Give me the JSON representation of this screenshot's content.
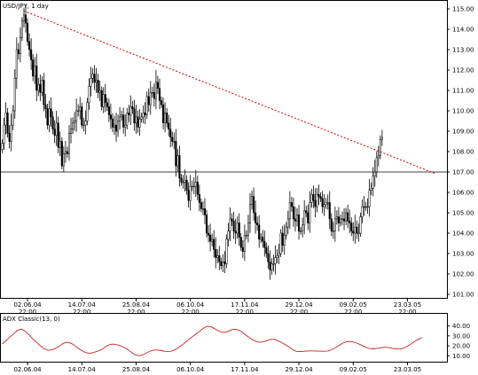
{
  "chart_data": [
    {
      "type": "candlestick",
      "title": "USD/JPY, 1 day",
      "ylim": [
        101.0,
        115.0
      ],
      "yticks": [
        101.0,
        102.0,
        103.0,
        104.0,
        105.0,
        106.0,
        107.0,
        108.0,
        109.0,
        110.0,
        111.0,
        112.0,
        113.0,
        114.0,
        115.0
      ],
      "x_labels": [
        {
          "date": "02.06.04",
          "time": "22:00",
          "index": 14
        },
        {
          "date": "14.07.04",
          "time": "22:00",
          "index": 44
        },
        {
          "date": "25.08.04",
          "time": "22:00",
          "index": 74
        },
        {
          "date": "06.10.04",
          "time": "22:00",
          "index": 104
        },
        {
          "date": "17.11.04",
          "time": "22:00",
          "index": 134
        },
        {
          "date": "29.12.04",
          "time": "22:00",
          "index": 164
        },
        {
          "date": "09.02.05",
          "time": "22:00",
          "index": 194
        },
        {
          "date": "23.03.05",
          "time": "22:00",
          "index": 224
        }
      ],
      "close": [
        108.4,
        109.3,
        109.9,
        108.9,
        108.5,
        109.3,
        110.0,
        111.6,
        113.0,
        112.8,
        113.6,
        114.4,
        114.7,
        114.3,
        113.4,
        113.0,
        112.5,
        111.7,
        112.2,
        111.0,
        111.3,
        110.9,
        111.5,
        110.3,
        110.1,
        109.3,
        110.1,
        109.7,
        109.1,
        108.8,
        109.4,
        108.2,
        108.5,
        107.3,
        107.9,
        108.0,
        107.9,
        108.9,
        109.1,
        109.4,
        109.5,
        110.0,
        110.0,
        110.2,
        109.3,
        109.3,
        109.5,
        110.4,
        111.2,
        111.6,
        111.8,
        111.4,
        111.5,
        110.9,
        111.0,
        110.2,
        110.8,
        110.4,
        110.2,
        109.8,
        109.6,
        109.2,
        109.3,
        109.0,
        109.5,
        109.7,
        109.8,
        109.2,
        109.3,
        109.9,
        109.8,
        110.2,
        110.1,
        109.4,
        109.7,
        109.2,
        109.6,
        109.7,
        109.9,
        109.8,
        110.7,
        110.3,
        110.9,
        110.9,
        110.6,
        111.4,
        111.1,
        110.5,
        110.3,
        109.4,
        109.9,
        109.4,
        109.1,
        108.7,
        108.5,
        108.5,
        107.3,
        107.8,
        106.7,
        106.5,
        106.5,
        106.6,
        106.1,
        105.6,
        106.3,
        106.3,
        106.3,
        106.5,
        105.9,
        105.5,
        105.2,
        105.2,
        104.9,
        104.0,
        103.9,
        103.6,
        103.7,
        103.2,
        102.8,
        102.9,
        102.6,
        102.4,
        102.6,
        102.5,
        103.7,
        104.1,
        104.7,
        104.6,
        104.1,
        104.0,
        104.5,
        103.8,
        103.3,
        103.1,
        103.9,
        103.9,
        104.5,
        105.4,
        105.8,
        105.0,
        104.5,
        104.4,
        103.7,
        103.8,
        103.6,
        103.3,
        103.0,
        102.6,
        102.2,
        102.5,
        102.5,
        102.8,
        102.9,
        103.0,
        104.0,
        103.4,
        103.9,
        104.3,
        104.7,
        105.5,
        105.3,
        104.7,
        104.6,
        104.9,
        104.1,
        104.1,
        104.4,
        105.1,
        105.0,
        104.5,
        105.5,
        105.9,
        105.6,
        105.3,
        105.9,
        105.8,
        105.7,
        105.3,
        105.4,
        105.5,
        105.5,
        104.7,
        104.1,
        104.1,
        104.7,
        104.8,
        104.5,
        104.7,
        104.7,
        104.6,
        105.0,
        104.6,
        104.5,
        104.1,
        104.0,
        104.3,
        104.0,
        104.0,
        104.8,
        105.3,
        105.3,
        105.3,
        105.3,
        106.1,
        106.2,
        106.8,
        107.0,
        107.7,
        107.8,
        108.6,
        108.7
      ],
      "levels": [
        107.0
      ],
      "trendline": {
        "from": {
          "index": 12,
          "value": 114.9
        },
        "to": {
          "index": 240,
          "value": 106.9
        }
      },
      "colors": {
        "candle": "#000000",
        "trendline": "#cc0000",
        "level": "#000000"
      }
    },
    {
      "type": "line",
      "title": "ADX Classic(13, 0)",
      "ylim": [
        5,
        45
      ],
      "yticks": [
        10.0,
        20.0,
        30.0,
        40.0
      ],
      "x_labels": [
        {
          "date": "02.06.04",
          "index": 14
        },
        {
          "date": "14.07.04",
          "index": 44
        },
        {
          "date": "25.08.04",
          "index": 74
        },
        {
          "date": "06.10.04",
          "index": 104
        },
        {
          "date": "17.11.04",
          "index": 134
        },
        {
          "date": "29.12.04",
          "index": 164
        },
        {
          "date": "09.02.05",
          "index": 194
        },
        {
          "date": "23.03.05",
          "index": 224
        }
      ],
      "values": [
        21.9,
        23.7,
        25.0,
        26.7,
        28.6,
        30.1,
        31.5,
        33.2,
        35.0,
        35.9,
        36.7,
        36.5,
        35.6,
        34.1,
        32.6,
        30.7,
        28.7,
        26.8,
        25.1,
        23.5,
        21.7,
        20.2,
        18.8,
        17.4,
        16.5,
        15.8,
        15.6,
        15.9,
        16.3,
        17.2,
        18.1,
        19.1,
        20.4,
        21.6,
        22.6,
        23.3,
        23.5,
        23.3,
        22.6,
        21.6,
        20.3,
        19.0,
        17.7,
        16.5,
        15.2,
        14.3,
        13.4,
        12.8,
        12.4,
        12.7,
        13.2,
        13.6,
        14.2,
        14.8,
        15.5,
        16.4,
        17.5,
        19.0,
        20.2,
        21.0,
        21.5,
        21.7,
        21.6,
        21.3,
        20.8,
        20.3,
        19.6,
        18.7,
        17.8,
        16.7,
        15.4,
        14.1,
        12.8,
        11.5,
        10.7,
        10.4,
        10.3,
        10.6,
        11.2,
        12.1,
        13.1,
        14.0,
        14.9,
        15.4,
        15.8,
        15.9,
        15.8,
        15.5,
        15.2,
        14.8,
        14.6,
        14.4,
        14.4,
        14.6,
        15.0,
        15.7,
        16.7,
        17.8,
        19.1,
        20.4,
        21.7,
        23.1,
        24.6,
        26.2,
        27.7,
        29.0,
        30.4,
        31.8,
        33.1,
        34.5,
        36.0,
        37.4,
        38.6,
        39.4,
        39.6,
        39.3,
        38.6,
        37.6,
        36.6,
        35.6,
        34.7,
        33.9,
        33.5,
        33.6,
        34.0,
        34.7,
        35.5,
        36.2,
        36.6,
        36.7,
        36.2,
        35.4,
        34.4,
        33.1,
        31.6,
        30.3,
        29.0,
        27.7,
        26.5,
        25.5,
        24.7,
        24.1,
        23.8,
        23.8,
        24.0,
        24.4,
        24.9,
        25.6,
        26.3,
        26.6,
        26.6,
        26.2,
        25.4,
        24.6,
        23.7,
        22.7,
        21.7,
        20.6,
        19.4,
        18.2,
        17.0,
        15.9,
        14.9,
        14.4,
        14.2,
        14.3,
        14.4,
        14.6,
        14.8,
        14.9,
        15.0,
        15.0,
        14.9,
        14.9,
        14.8,
        14.7,
        14.7,
        14.6,
        14.6,
        14.7,
        14.9,
        15.4,
        16.1,
        17.0,
        18.0,
        19.1,
        20.2,
        21.3,
        22.4,
        23.3,
        23.9,
        24.3,
        24.4,
        24.2,
        23.9,
        23.4,
        22.8,
        22.0,
        21.2,
        20.3,
        19.4,
        18.6,
        17.9,
        17.4,
        17.1,
        17.0,
        17.1,
        17.4,
        17.7,
        18.1,
        18.4,
        18.6,
        18.6,
        18.5,
        18.1,
        17.7,
        17.3,
        17.0,
        16.8,
        16.8,
        16.9,
        17.2,
        17.9,
        18.8,
        19.7,
        20.8,
        21.9,
        23.3,
        24.5,
        25.6,
        26.5,
        27.4,
        28.5
      ],
      "colors": {
        "line": "#cc2222"
      }
    }
  ]
}
